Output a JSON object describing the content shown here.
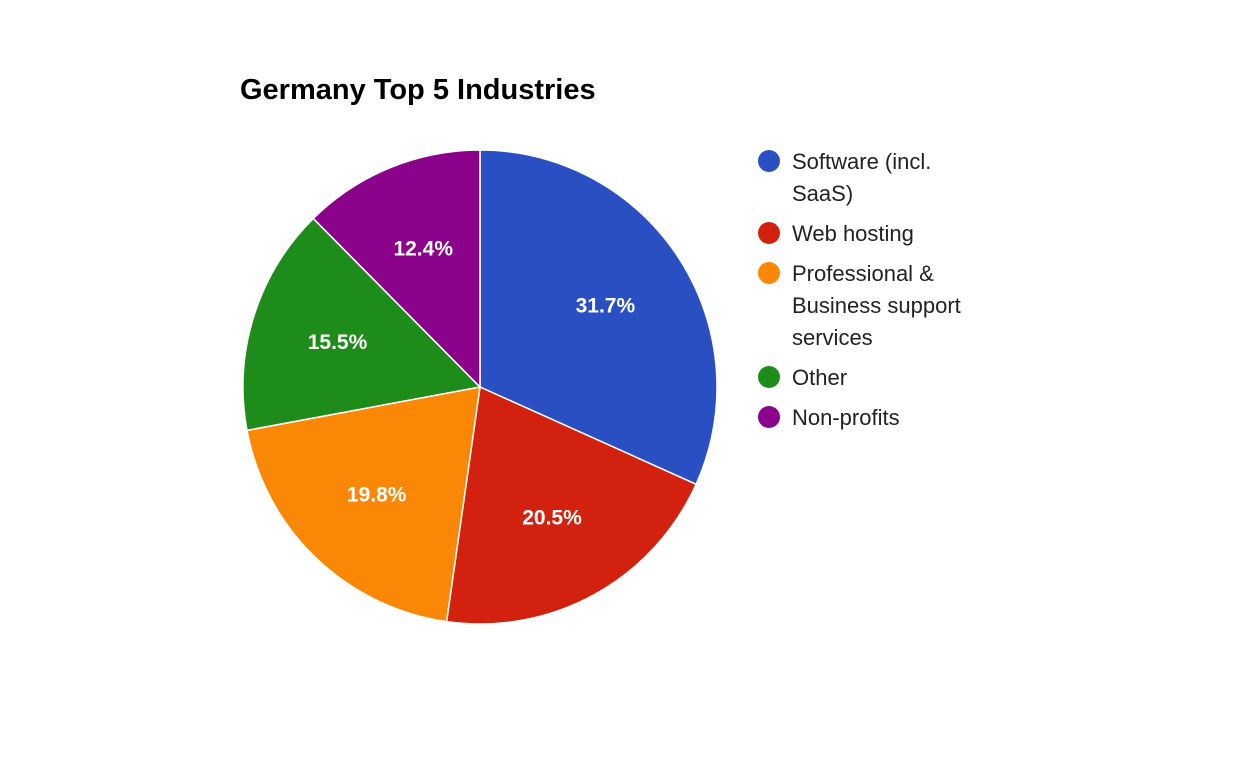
{
  "chart_data": {
    "type": "pie",
    "title": "Germany Top 5 Industries",
    "slices": [
      {
        "label": "Software (incl. SaaS)",
        "value": 31.7,
        "display": "31.7%",
        "color": "#2a4fc2"
      },
      {
        "label": "Web hosting",
        "value": 20.5,
        "display": "20.5%",
        "color": "#d2220f"
      },
      {
        "label": "Professional & Business support services",
        "value": 19.8,
        "display": "19.8%",
        "color": "#fb8707"
      },
      {
        "label": "Other",
        "value": 15.5,
        "display": "15.5%",
        "color": "#1e8c1b"
      },
      {
        "label": "Non-profits",
        "value": 12.4,
        "display": "12.4%",
        "color": "#8a038a"
      }
    ],
    "legend_position": "right",
    "start_angle": "top (12 o'clock)",
    "direction": "clockwise"
  }
}
